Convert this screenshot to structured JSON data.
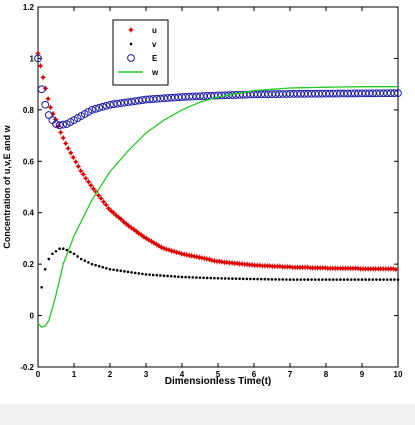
{
  "chart_data": {
    "type": "line",
    "title": "",
    "xlabel": "Dimensionless Time(t)",
    "ylabel": "Concentration of u,v,E and w",
    "xlim": [
      0,
      10
    ],
    "ylim": [
      -0.2,
      1.2
    ],
    "xticks": [
      "0",
      "1",
      "2",
      "3",
      "4",
      "5",
      "6",
      "7",
      "8",
      "9",
      "10"
    ],
    "yticks": [
      "-0.2",
      "0",
      "0.2",
      "0.4",
      "0.6",
      "0.8",
      "1",
      "1.2"
    ],
    "grid": false,
    "legend_position": "top-left",
    "series": [
      {
        "name": "u",
        "marker": "star",
        "color": "#e00000",
        "x": [
          0,
          0.1,
          0.2,
          0.3,
          0.4,
          0.5,
          0.6,
          0.8,
          1.0,
          1.2,
          1.5,
          2,
          2.5,
          3,
          3.5,
          4,
          5,
          6,
          7,
          8,
          9,
          10
        ],
        "y": [
          1.02,
          0.95,
          0.89,
          0.83,
          0.79,
          0.76,
          0.72,
          0.66,
          0.61,
          0.56,
          0.5,
          0.41,
          0.35,
          0.3,
          0.26,
          0.24,
          0.21,
          0.195,
          0.188,
          0.184,
          0.182,
          0.18
        ]
      },
      {
        "name": "v",
        "marker": "dot",
        "color": "#000000",
        "x": [
          0.1,
          0.2,
          0.3,
          0.4,
          0.5,
          0.6,
          0.7,
          0.8,
          1.0,
          1.2,
          1.5,
          2,
          2.5,
          3,
          4,
          5,
          6,
          7,
          8,
          9,
          10
        ],
        "y": [
          0.11,
          0.18,
          0.22,
          0.24,
          0.25,
          0.26,
          0.26,
          0.255,
          0.24,
          0.22,
          0.2,
          0.18,
          0.17,
          0.16,
          0.15,
          0.145,
          0.142,
          0.14,
          0.14,
          0.14,
          0.14
        ]
      },
      {
        "name": "E",
        "marker": "circle",
        "color": "#1a1aa8",
        "x": [
          0,
          0.1,
          0.2,
          0.3,
          0.4,
          0.5,
          0.6,
          0.8,
          1.0,
          1.5,
          2,
          2.5,
          3,
          3.5,
          4,
          5,
          6,
          7,
          8,
          9,
          10
        ],
        "y": [
          1.0,
          0.88,
          0.82,
          0.78,
          0.76,
          0.745,
          0.74,
          0.745,
          0.76,
          0.8,
          0.82,
          0.83,
          0.84,
          0.845,
          0.85,
          0.856,
          0.86,
          0.862,
          0.863,
          0.864,
          0.865
        ]
      },
      {
        "name": "w",
        "marker": "line",
        "color": "#22cc22",
        "x": [
          0,
          0.1,
          0.2,
          0.3,
          0.5,
          0.7,
          1.0,
          1.5,
          2,
          2.5,
          3,
          3.5,
          4,
          4.5,
          5,
          6,
          7,
          8,
          9,
          10
        ],
        "y": [
          -0.03,
          -0.045,
          -0.04,
          -0.02,
          0.08,
          0.2,
          0.31,
          0.45,
          0.56,
          0.64,
          0.71,
          0.76,
          0.8,
          0.83,
          0.85,
          0.875,
          0.885,
          0.888,
          0.89,
          0.89
        ]
      }
    ]
  }
}
